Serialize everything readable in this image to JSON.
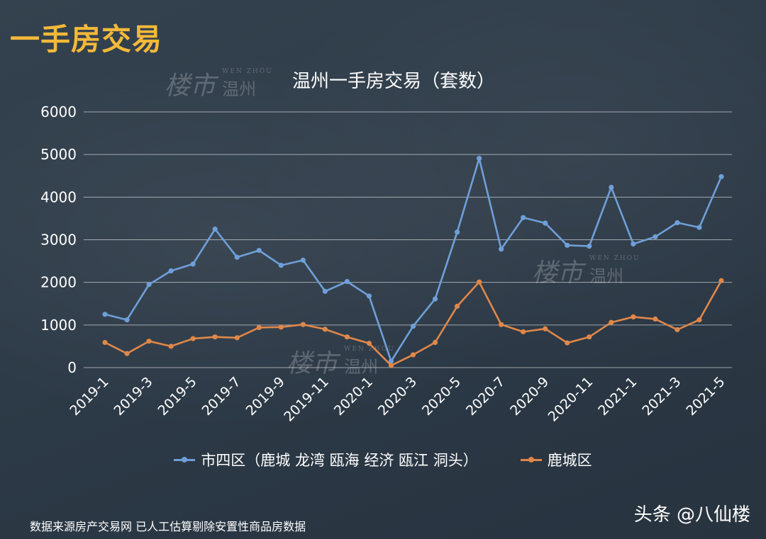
{
  "page": {
    "heading": "一手房交易",
    "footnote": "数据来源房产交易网 已人工估算剔除安置性商品房数据",
    "brand": "头条 @八仙楼",
    "watermark": {
      "logo": "楼市",
      "en": "WEN ZHOU",
      "cn": "温州"
    }
  },
  "chart_data": {
    "type": "line",
    "title": "温州一手房交易（套数）",
    "xlabel": "",
    "ylabel": "",
    "ylim": [
      0,
      6000
    ],
    "yticks": [
      0,
      1000,
      2000,
      3000,
      4000,
      5000,
      6000
    ],
    "grid": true,
    "legend_position": "bottom",
    "categories": [
      "2019-1",
      "2019-2",
      "2019-3",
      "2019-4",
      "2019-5",
      "2019-6",
      "2019-7",
      "2019-8",
      "2019-9",
      "2019-10",
      "2019-11",
      "2019-12",
      "2020-1",
      "2020-2",
      "2020-3",
      "2020-4",
      "2020-5",
      "2020-6",
      "2020-7",
      "2020-8",
      "2020-9",
      "2020-10",
      "2020-11",
      "2020-12",
      "2021-1",
      "2021-2",
      "2021-3",
      "2021-4",
      "2021-5"
    ],
    "tick_labels": [
      "2019-1",
      "2019-3",
      "2019-5",
      "2019-7",
      "2019-9",
      "2019-11",
      "2020-1",
      "2020-3",
      "2020-5",
      "2020-7",
      "2020-9",
      "2020-11",
      "2021-1",
      "2021-3",
      "2021-5"
    ],
    "series": [
      {
        "name": "市四区（鹿城 龙湾 瓯海 经济 瓯江 洞头）",
        "color": "#6f9fd8",
        "values": [
          1250,
          1120,
          1950,
          2270,
          2430,
          3250,
          2590,
          2750,
          2400,
          2520,
          1790,
          2020,
          1680,
          150,
          970,
          1610,
          3180,
          4910,
          2780,
          3520,
          3390,
          2870,
          2850,
          4230,
          2900,
          3070,
          3400,
          3290,
          4480
        ]
      },
      {
        "name": "鹿城区",
        "color": "#e0874a",
        "values": [
          590,
          330,
          620,
          500,
          680,
          720,
          700,
          940,
          950,
          1010,
          900,
          720,
          570,
          50,
          300,
          590,
          1440,
          2010,
          1010,
          840,
          910,
          580,
          720,
          1060,
          1190,
          1140,
          890,
          1120,
          2040
        ]
      }
    ]
  }
}
